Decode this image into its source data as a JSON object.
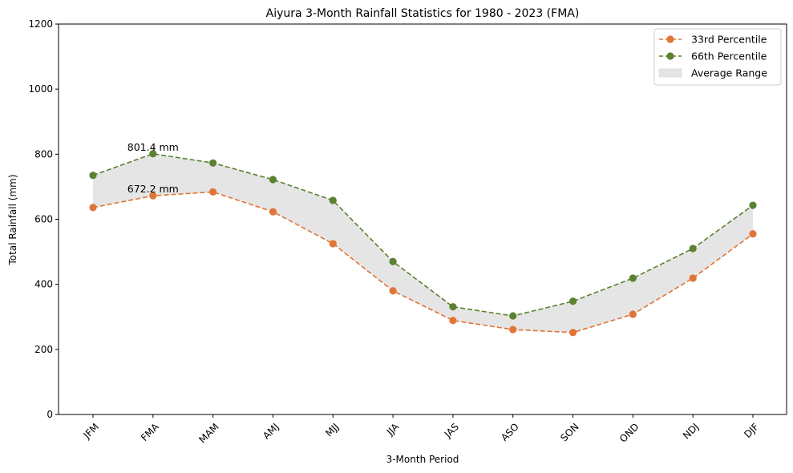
{
  "chart_data": {
    "type": "line",
    "title": "Aiyura 3-Month Rainfall Statistics for 1980 - 2023 (FMA)",
    "xlabel": "3-Month Period",
    "ylabel": "Total Rainfall (mm)",
    "ylim": [
      0,
      1200
    ],
    "yticks": [
      "0",
      "200",
      "400",
      "600",
      "800",
      "1000",
      "1200"
    ],
    "categories": [
      "JFM",
      "FMA",
      "MAM",
      "AMJ",
      "MJJ",
      "JJA",
      "JAS",
      "ASO",
      "SON",
      "OND",
      "NDJ",
      "DJF"
    ],
    "series": [
      {
        "name": "33rd Percentile",
        "color": "#e07538",
        "values": [
          636,
          672.2,
          684,
          623,
          525,
          380,
          289,
          261,
          252,
          308,
          419,
          555
        ]
      },
      {
        "name": "66th Percentile",
        "color": "#5a8230",
        "values": [
          735,
          801.4,
          773,
          722,
          658,
          470,
          331,
          303,
          348,
          419,
          510,
          643
        ]
      }
    ],
    "fill": {
      "name": "Average Range",
      "color": "#e5e5e5"
    },
    "annotations": [
      {
        "text": "801.4 mm",
        "category": "FMA",
        "value": 801.4
      },
      {
        "text": "672.2 mm",
        "category": "FMA",
        "value": 672.2
      }
    ],
    "legend_position": "top-right",
    "grid": false
  }
}
